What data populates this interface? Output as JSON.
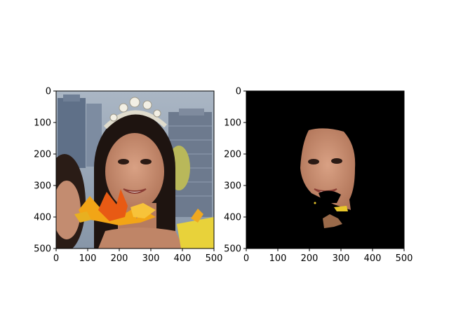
{
  "chart_data": [
    {
      "type": "image",
      "xlim": [
        0,
        500
      ],
      "ylim": [
        500,
        0
      ],
      "x_ticks": [
        0,
        100,
        200,
        300,
        400,
        500
      ],
      "y_ticks": [
        0,
        100,
        200,
        300,
        400,
        500
      ],
      "x_tick_labels": [
        "0",
        "100",
        "200",
        "300",
        "400",
        "500"
      ],
      "y_tick_labels": [
        "0",
        "100",
        "200",
        "300",
        "400",
        "500"
      ]
    },
    {
      "type": "image",
      "xlim": [
        0,
        500
      ],
      "ylim": [
        500,
        0
      ],
      "x_ticks": [
        0,
        100,
        200,
        300,
        400,
        500
      ],
      "y_ticks": [
        0,
        100,
        200,
        300,
        400,
        500
      ],
      "x_tick_labels": [
        "0",
        "100",
        "200",
        "300",
        "400",
        "500"
      ],
      "y_tick_labels": [
        "0",
        "100",
        "200",
        "300",
        "400",
        "500"
      ]
    }
  ]
}
